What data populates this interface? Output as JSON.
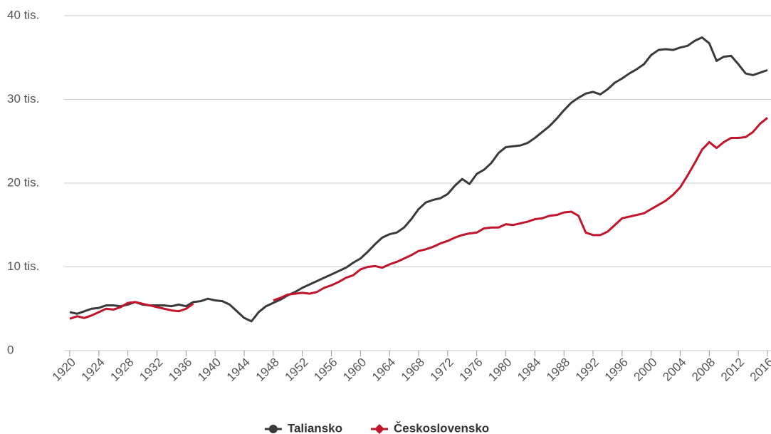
{
  "chart_data": {
    "type": "line",
    "x": [
      1920,
      1921,
      1922,
      1923,
      1924,
      1925,
      1926,
      1927,
      1928,
      1929,
      1930,
      1931,
      1932,
      1933,
      1934,
      1935,
      1936,
      1937,
      1938,
      1939,
      1940,
      1941,
      1942,
      1943,
      1944,
      1945,
      1946,
      1947,
      1948,
      1949,
      1950,
      1951,
      1952,
      1953,
      1954,
      1955,
      1956,
      1957,
      1958,
      1959,
      1960,
      1961,
      1962,
      1963,
      1964,
      1965,
      1966,
      1967,
      1968,
      1969,
      1970,
      1971,
      1972,
      1973,
      1974,
      1975,
      1976,
      1977,
      1978,
      1979,
      1980,
      1981,
      1982,
      1983,
      1984,
      1985,
      1986,
      1987,
      1988,
      1989,
      1990,
      1991,
      1992,
      1993,
      1994,
      1995,
      1996,
      1997,
      1998,
      1999,
      2000,
      2001,
      2002,
      2003,
      2004,
      2005,
      2006,
      2007,
      2008,
      2009,
      2010,
      2011,
      2012,
      2013,
      2014,
      2015,
      2016
    ],
    "series": [
      {
        "name": "Taliansko",
        "color": "#3a3a3a",
        "marker": "circle",
        "values": [
          4600,
          4400,
          4700,
          5000,
          5100,
          5400,
          5400,
          5300,
          5500,
          5800,
          5500,
          5400,
          5400,
          5400,
          5300,
          5500,
          5300,
          5800,
          5900,
          6200,
          6000,
          5900,
          5500,
          4700,
          3900,
          3500,
          4600,
          5300,
          5700,
          6100,
          6600,
          7000,
          7500,
          7900,
          8300,
          8700,
          9100,
          9500,
          9900,
          10500,
          11000,
          11800,
          12700,
          13500,
          13900,
          14100,
          14700,
          15700,
          16900,
          17700,
          18000,
          18200,
          18700,
          19700,
          20500,
          19900,
          21100,
          21600,
          22400,
          23600,
          24300,
          24400,
          24500,
          24800,
          25400,
          26100,
          26800,
          27700,
          28700,
          29600,
          30200,
          30700,
          30900,
          30600,
          31200,
          32000,
          32500,
          33100,
          33600,
          34200,
          35300,
          35900,
          36000,
          35900,
          36200,
          36400,
          37000,
          37400,
          36700,
          34600,
          35100,
          35200,
          34200,
          33100,
          32900,
          33200,
          33500
        ]
      },
      {
        "name": "Československo",
        "color": "#c0152a",
        "marker": "diamond",
        "values": [
          3800,
          4100,
          3900,
          4200,
          4600,
          5000,
          4900,
          5200,
          5700,
          5800,
          5600,
          5400,
          5200,
          5000,
          4800,
          4700,
          5000,
          5600,
          null,
          null,
          null,
          null,
          null,
          null,
          null,
          null,
          null,
          null,
          6000,
          6300,
          6700,
          6800,
          6900,
          6800,
          7000,
          7500,
          7800,
          8200,
          8700,
          9000,
          9700,
          10000,
          10100,
          9900,
          10300,
          10600,
          11000,
          11400,
          11900,
          12100,
          12400,
          12800,
          13100,
          13500,
          13800,
          14000,
          14100,
          14600,
          14700,
          14700,
          15100,
          15000,
          15200,
          15400,
          15700,
          15800,
          16100,
          16200,
          16500,
          16600,
          16100,
          14100,
          13800,
          13800,
          14200,
          15000,
          15800,
          16000,
          16200,
          16400,
          16900,
          17400,
          17900,
          18600,
          19500,
          20900,
          22400,
          24000,
          24900,
          24200,
          24900,
          25400,
          25400,
          25500,
          26100,
          27100,
          27800
        ]
      }
    ],
    "xlim": [
      1920,
      2016
    ],
    "xticks": [
      1920,
      1924,
      1928,
      1932,
      1936,
      1940,
      1944,
      1948,
      1952,
      1956,
      1960,
      1964,
      1968,
      1972,
      1976,
      1980,
      1984,
      1988,
      1992,
      1996,
      2000,
      2004,
      2008,
      2012,
      2016
    ],
    "ylim": [
      0,
      40000
    ],
    "yticks": [
      0,
      {
        "value": 10000,
        "label": "10 tis."
      },
      {
        "value": 20000,
        "label": "20 tis."
      },
      {
        "value": 30000,
        "label": "30 tis."
      },
      {
        "value": 40000,
        "label": "40 tis."
      }
    ],
    "grid": true,
    "legend": "bottom"
  }
}
